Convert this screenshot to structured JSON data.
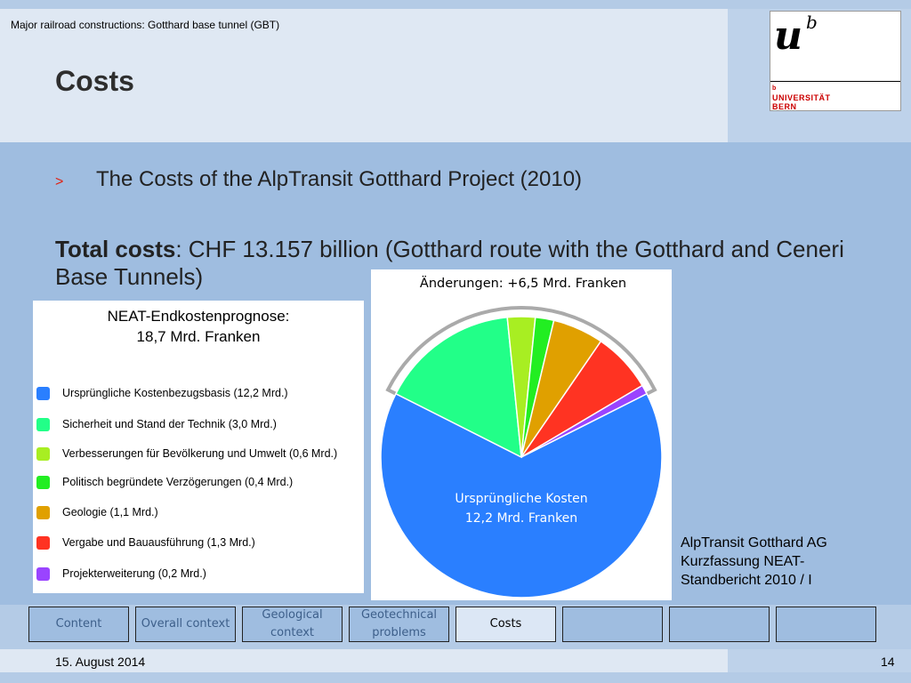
{
  "header": {
    "subtitle": "Major railroad constructions: Gotthard base tunnel (GBT)",
    "title": "Costs"
  },
  "logo": {
    "letter_u": "u",
    "letter_b": "b",
    "small_b": "b",
    "line1": "UNIVERSITÄT",
    "line2": "BERN"
  },
  "bullet": {
    "marker": ">",
    "text": "The Costs of the AlpTransit Gotthard Project (2010)"
  },
  "total": {
    "label": "Total costs",
    "text": ": CHF 13.157 billion (Gotthard route with the Gotthard and Ceneri Base Tunnels)"
  },
  "legend": {
    "title_line1": "NEAT-Endkostenprognose:",
    "title_line2": "18,7 Mrd. Franken",
    "items": [
      {
        "label": "Ursprüngliche Kostenbezugsbasis (12,2 Mrd.)",
        "color": "#2a7fff"
      },
      {
        "label": "Sicherheit und Stand der Technik (3,0 Mrd.)",
        "color": "#22ff88"
      },
      {
        "label": "Verbesserungen für Bevölkerung und Umwelt (0,6 Mrd.)",
        "color": "#a8ee22"
      },
      {
        "label": "Politisch begründete Verzögerungen (0,4 Mrd.)",
        "color": "#22ee22"
      },
      {
        "label": "Geologie (1,1 Mrd.)",
        "color": "#e0a000"
      },
      {
        "label": "Vergabe und Bauausführung (1,3 Mrd.)",
        "color": "#ff3322"
      },
      {
        "label": "Projekterweiterung (0,2 Mrd.)",
        "color": "#9a44ff"
      }
    ]
  },
  "chart_data": {
    "type": "pie",
    "title": "Änderungen: +6,5 Mrd. Franken",
    "center_label_line1": "Ursprüngliche Kosten",
    "center_label_line2": "12,2 Mrd. Franken",
    "slices": [
      {
        "label": "Ursprüngliche Kostenbezugsbasis",
        "value": 12.2,
        "color": "#2a7fff"
      },
      {
        "label": "Sicherheit und Stand der Technik",
        "value": 3.0,
        "color": "#22ff88"
      },
      {
        "label": "Verbesserungen für Bevölkerung und Umwelt",
        "value": 0.6,
        "color": "#a8ee22"
      },
      {
        "label": "Politisch begründete Verzögerungen",
        "value": 0.4,
        "color": "#22ee22"
      },
      {
        "label": "Geologie",
        "value": 1.1,
        "color": "#e0a000"
      },
      {
        "label": "Vergabe und Bauausführung",
        "value": 1.3,
        "color": "#ff3322"
      },
      {
        "label": "Projekterweiterung",
        "value": 0.2,
        "color": "#9a44ff"
      }
    ]
  },
  "source": {
    "line1": "AlpTransit Gotthard AG",
    "line2": "Kurzfassung NEAT-",
    "line3": "Standbericht 2010 / I"
  },
  "nav": {
    "tabs": [
      {
        "label": "Content",
        "active": false
      },
      {
        "label": "Overall context",
        "active": false
      },
      {
        "label": "Geological context",
        "active": false
      },
      {
        "label": "Geotechnical problems",
        "active": false
      },
      {
        "label": "Costs",
        "active": true
      },
      {
        "label": "",
        "active": false
      },
      {
        "label": "",
        "active": false
      },
      {
        "label": "",
        "active": false
      }
    ]
  },
  "footer": {
    "date": "15. August 2014",
    "page": "14"
  }
}
